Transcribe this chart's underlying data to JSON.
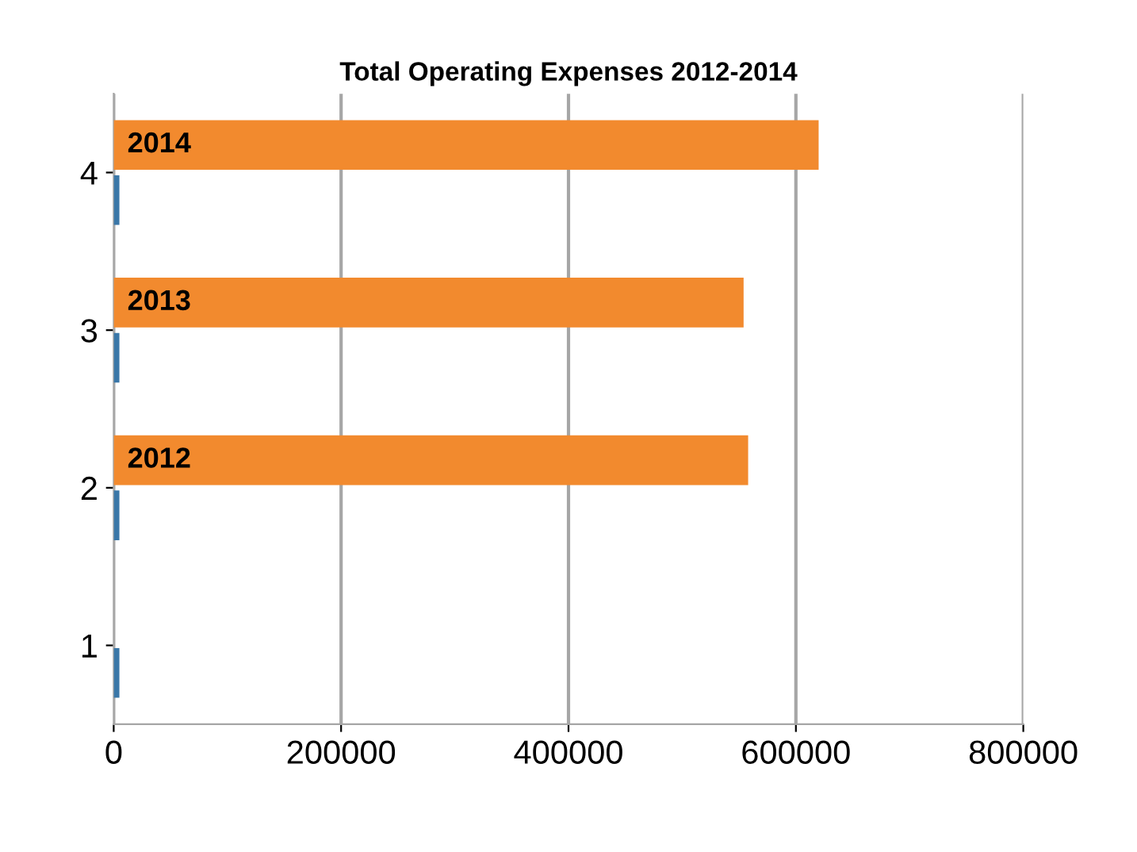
{
  "chart_data": {
    "type": "bar",
    "orientation": "horizontal",
    "title": "Total Operating Expenses 2012-2014",
    "categories": [
      "4",
      "3",
      "2",
      "1"
    ],
    "series": [
      {
        "color": "#f28a2e",
        "values": [
          620000,
          554000,
          558000,
          null
        ]
      },
      {
        "color": "#3a77a8",
        "values": [
          5000,
          5000,
          5000,
          5000
        ]
      }
    ],
    "annotations": [
      {
        "text": "2014",
        "y": "4"
      },
      {
        "text": "2013",
        "y": "3"
      },
      {
        "text": "2012",
        "y": "2"
      }
    ],
    "xlim": [
      0,
      800000
    ],
    "xticks": [
      0,
      200000,
      400000,
      600000,
      800000
    ],
    "grid": "x"
  }
}
